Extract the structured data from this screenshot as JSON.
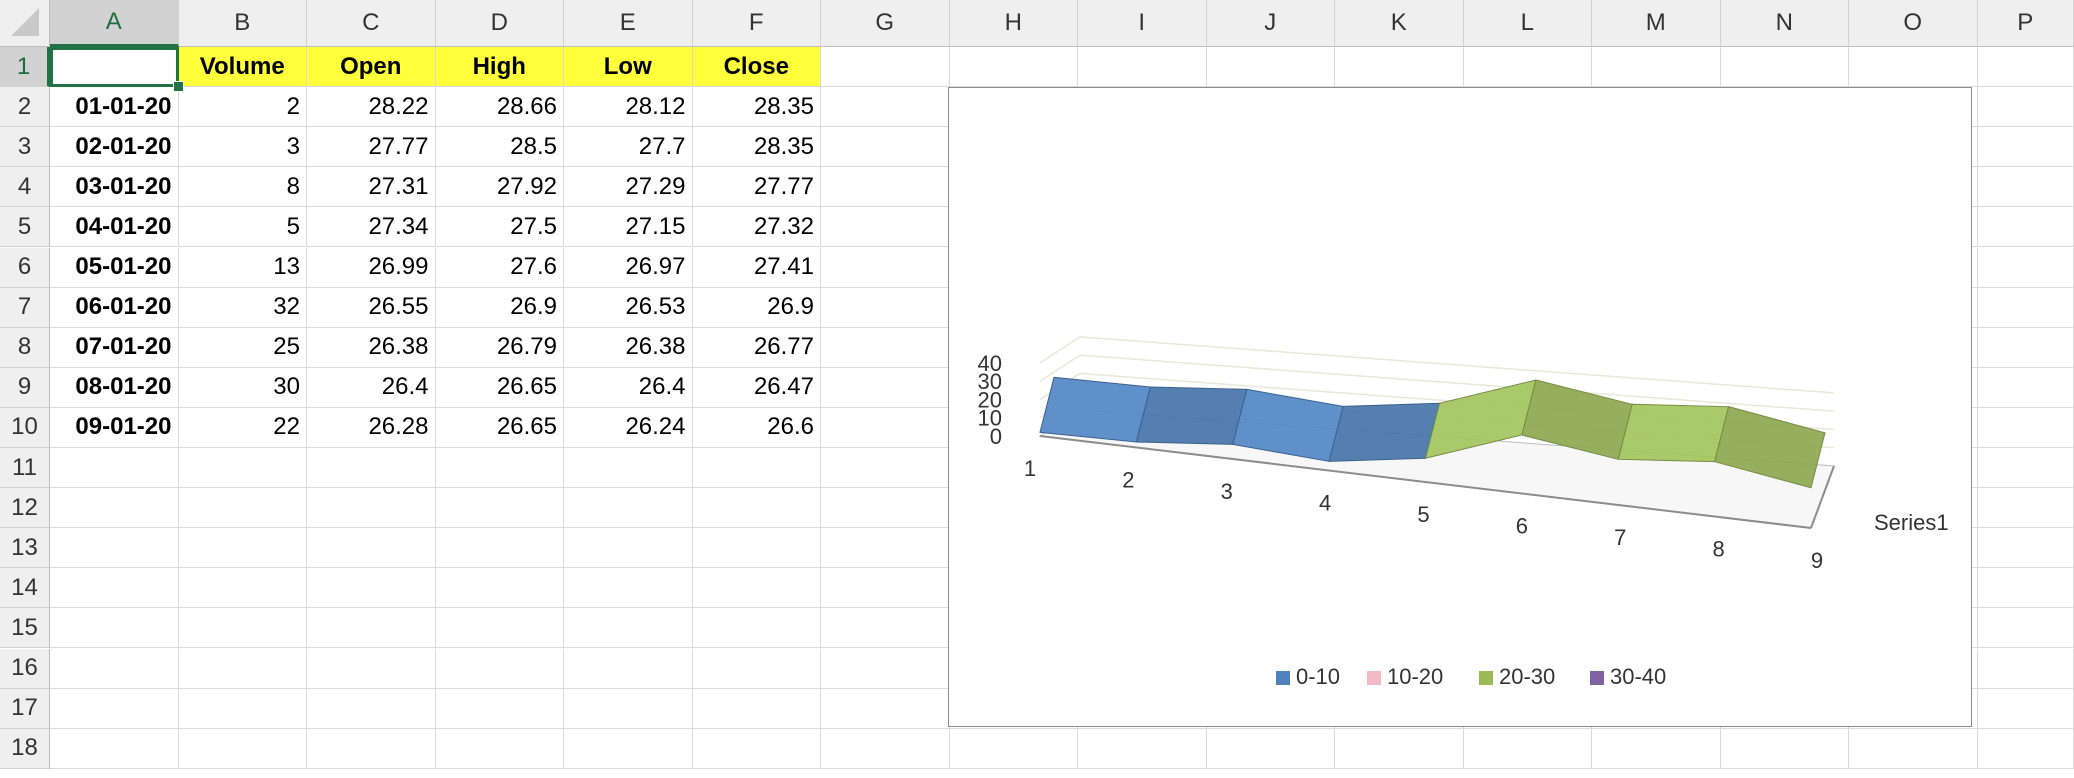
{
  "columns": [
    "A",
    "B",
    "C",
    "D",
    "E",
    "F",
    "G",
    "H",
    "I",
    "J",
    "K",
    "L",
    "M",
    "N",
    "O",
    "P"
  ],
  "rows": [
    "1",
    "2",
    "3",
    "4",
    "5",
    "6",
    "7",
    "8",
    "9",
    "10",
    "11",
    "12",
    "13",
    "14",
    "15",
    "16",
    "17",
    "18"
  ],
  "headers": [
    "",
    "Volume",
    "Open",
    "High",
    "Low",
    "Close"
  ],
  "table": [
    [
      "01-01-20",
      "2",
      "28.22",
      "28.66",
      "28.12",
      "28.35"
    ],
    [
      "02-01-20",
      "3",
      "27.77",
      "28.5",
      "27.7",
      "28.35"
    ],
    [
      "03-01-20",
      "8",
      "27.31",
      "27.92",
      "27.29",
      "27.77"
    ],
    [
      "04-01-20",
      "5",
      "27.34",
      "27.5",
      "27.15",
      "27.32"
    ],
    [
      "05-01-20",
      "13",
      "26.99",
      "27.6",
      "26.97",
      "27.41"
    ],
    [
      "06-01-20",
      "32",
      "26.55",
      "26.9",
      "26.53",
      "26.9"
    ],
    [
      "07-01-20",
      "25",
      "26.38",
      "26.79",
      "26.38",
      "26.77"
    ],
    [
      "08-01-20",
      "30",
      "26.4",
      "26.65",
      "26.4",
      "26.47"
    ],
    [
      "09-01-20",
      "22",
      "26.28",
      "26.65",
      "26.24",
      "26.6"
    ]
  ],
  "active_cell": "A1",
  "colors": {
    "header_fill": "#ffff3c",
    "selection": "#217346",
    "band_0_10": "#4f81bd",
    "band_10_20": "#f2b9c6",
    "band_20_30": "#9bbb59",
    "band_30_40": "#8064a2"
  },
  "chart_data": {
    "type": "3d-surface",
    "categories": [
      "1",
      "2",
      "3",
      "4",
      "5",
      "6",
      "7",
      "8",
      "9"
    ],
    "series_axis_label": "Series1",
    "values": [
      2,
      3,
      8,
      5,
      13,
      32,
      25,
      30,
      22
    ],
    "z_ticks": [
      "0",
      "10",
      "20",
      "30",
      "40"
    ],
    "ylim": [
      0,
      40
    ],
    "legend": [
      {
        "label": "0-10",
        "color": "#4f81bd"
      },
      {
        "label": "10-20",
        "color": "#f2b9c6"
      },
      {
        "label": "20-30",
        "color": "#9bbb59"
      },
      {
        "label": "30-40",
        "color": "#8064a2"
      }
    ],
    "legend_position": "bottom",
    "gridlines": true
  }
}
